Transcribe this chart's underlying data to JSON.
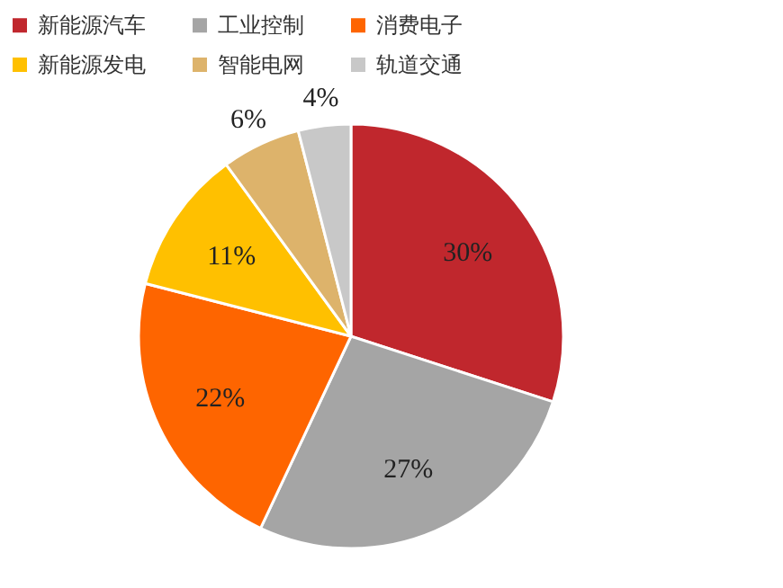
{
  "chart_data": {
    "type": "pie",
    "categories": [
      "新能源汽车",
      "工业控制",
      "消费电子",
      "新能源发电",
      "智能电网",
      "轨道交通"
    ],
    "values": [
      30,
      27,
      22,
      11,
      6,
      4
    ],
    "colors": [
      "#c0272d",
      "#a5a5a5",
      "#fe6500",
      "#ffc000",
      "#ddb36b",
      "#c8c8c8"
    ],
    "value_labels": [
      "30%",
      "27%",
      "22%",
      "11%",
      "6%",
      "4%"
    ],
    "legend": "top"
  }
}
